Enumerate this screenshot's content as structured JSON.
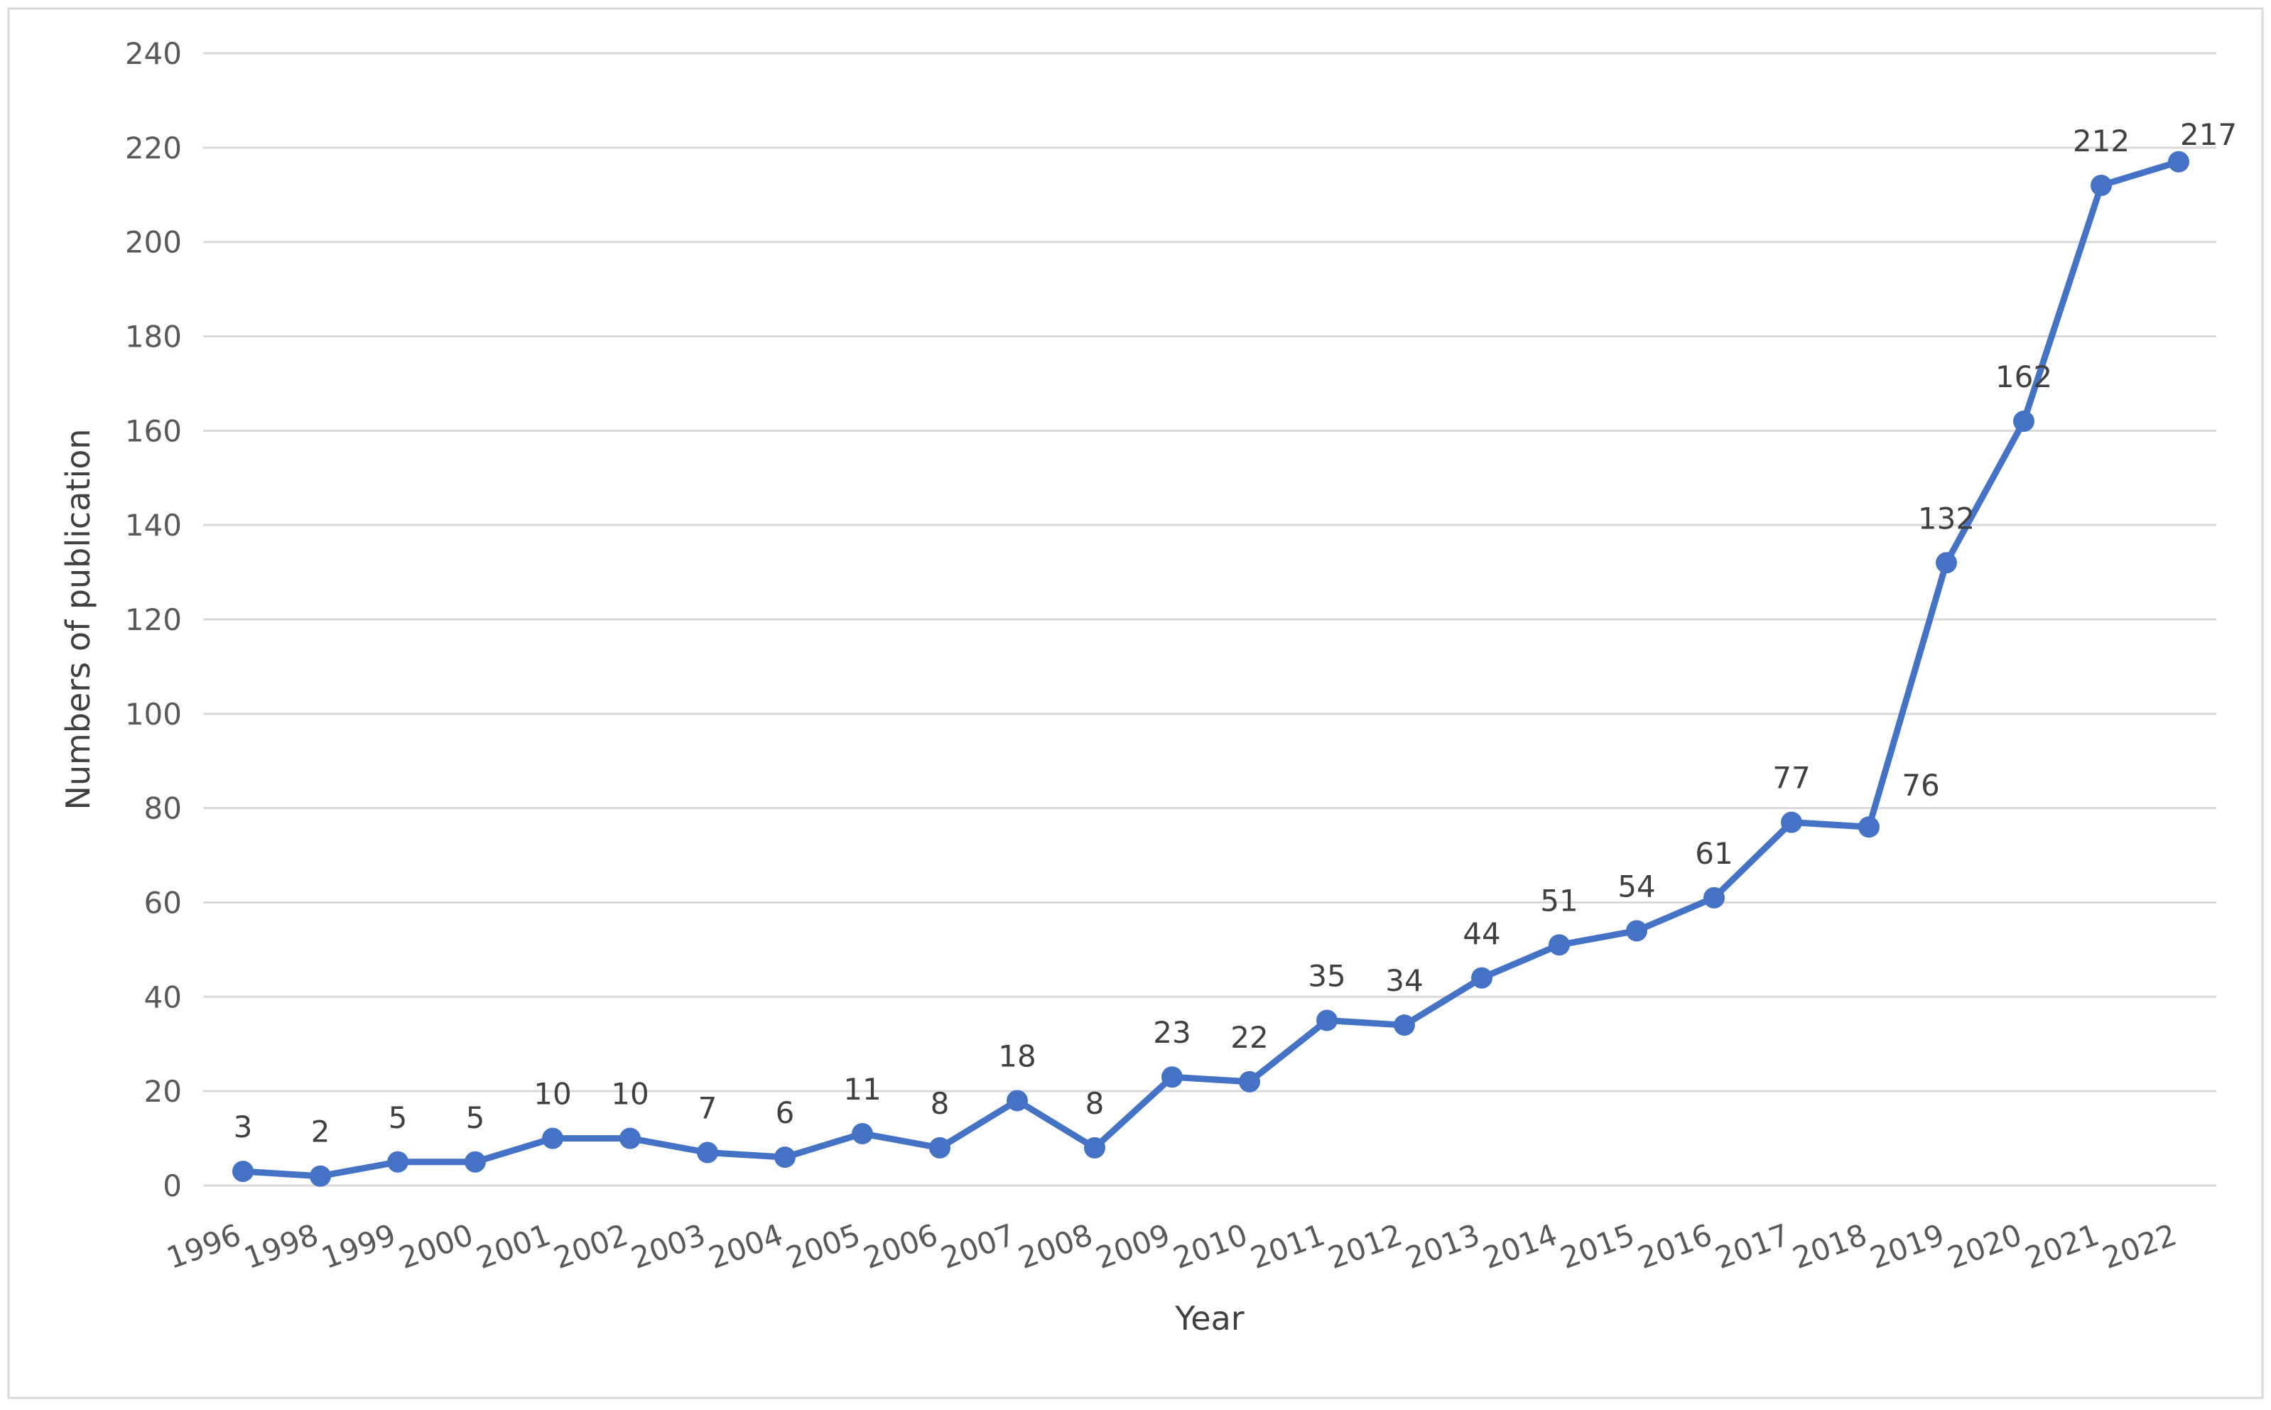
{
  "chart_data": {
    "type": "line",
    "title": "",
    "xlabel": "Year",
    "ylabel": "Numbers of publication",
    "ylim": [
      0,
      240
    ],
    "yticks": [
      0,
      20,
      40,
      60,
      80,
      100,
      120,
      140,
      160,
      180,
      200,
      220,
      240
    ],
    "grid": "horizontal",
    "legend": "none",
    "color": "#4472C4",
    "categories": [
      "1996",
      "1998",
      "1999",
      "2000",
      "2001",
      "2002",
      "2003",
      "2004",
      "2005",
      "2006",
      "2007",
      "2008",
      "2009",
      "2010",
      "2011",
      "2012",
      "2013",
      "2014",
      "2015",
      "2016",
      "2017",
      "2018",
      "2019",
      "2020",
      "2021",
      "2022"
    ],
    "series": [
      {
        "values": [
          3,
          2,
          5,
          5,
          10,
          10,
          7,
          6,
          11,
          8,
          18,
          8,
          23,
          22,
          35,
          34,
          44,
          51,
          54,
          61,
          77,
          76,
          132,
          162,
          212,
          217
        ]
      }
    ]
  }
}
